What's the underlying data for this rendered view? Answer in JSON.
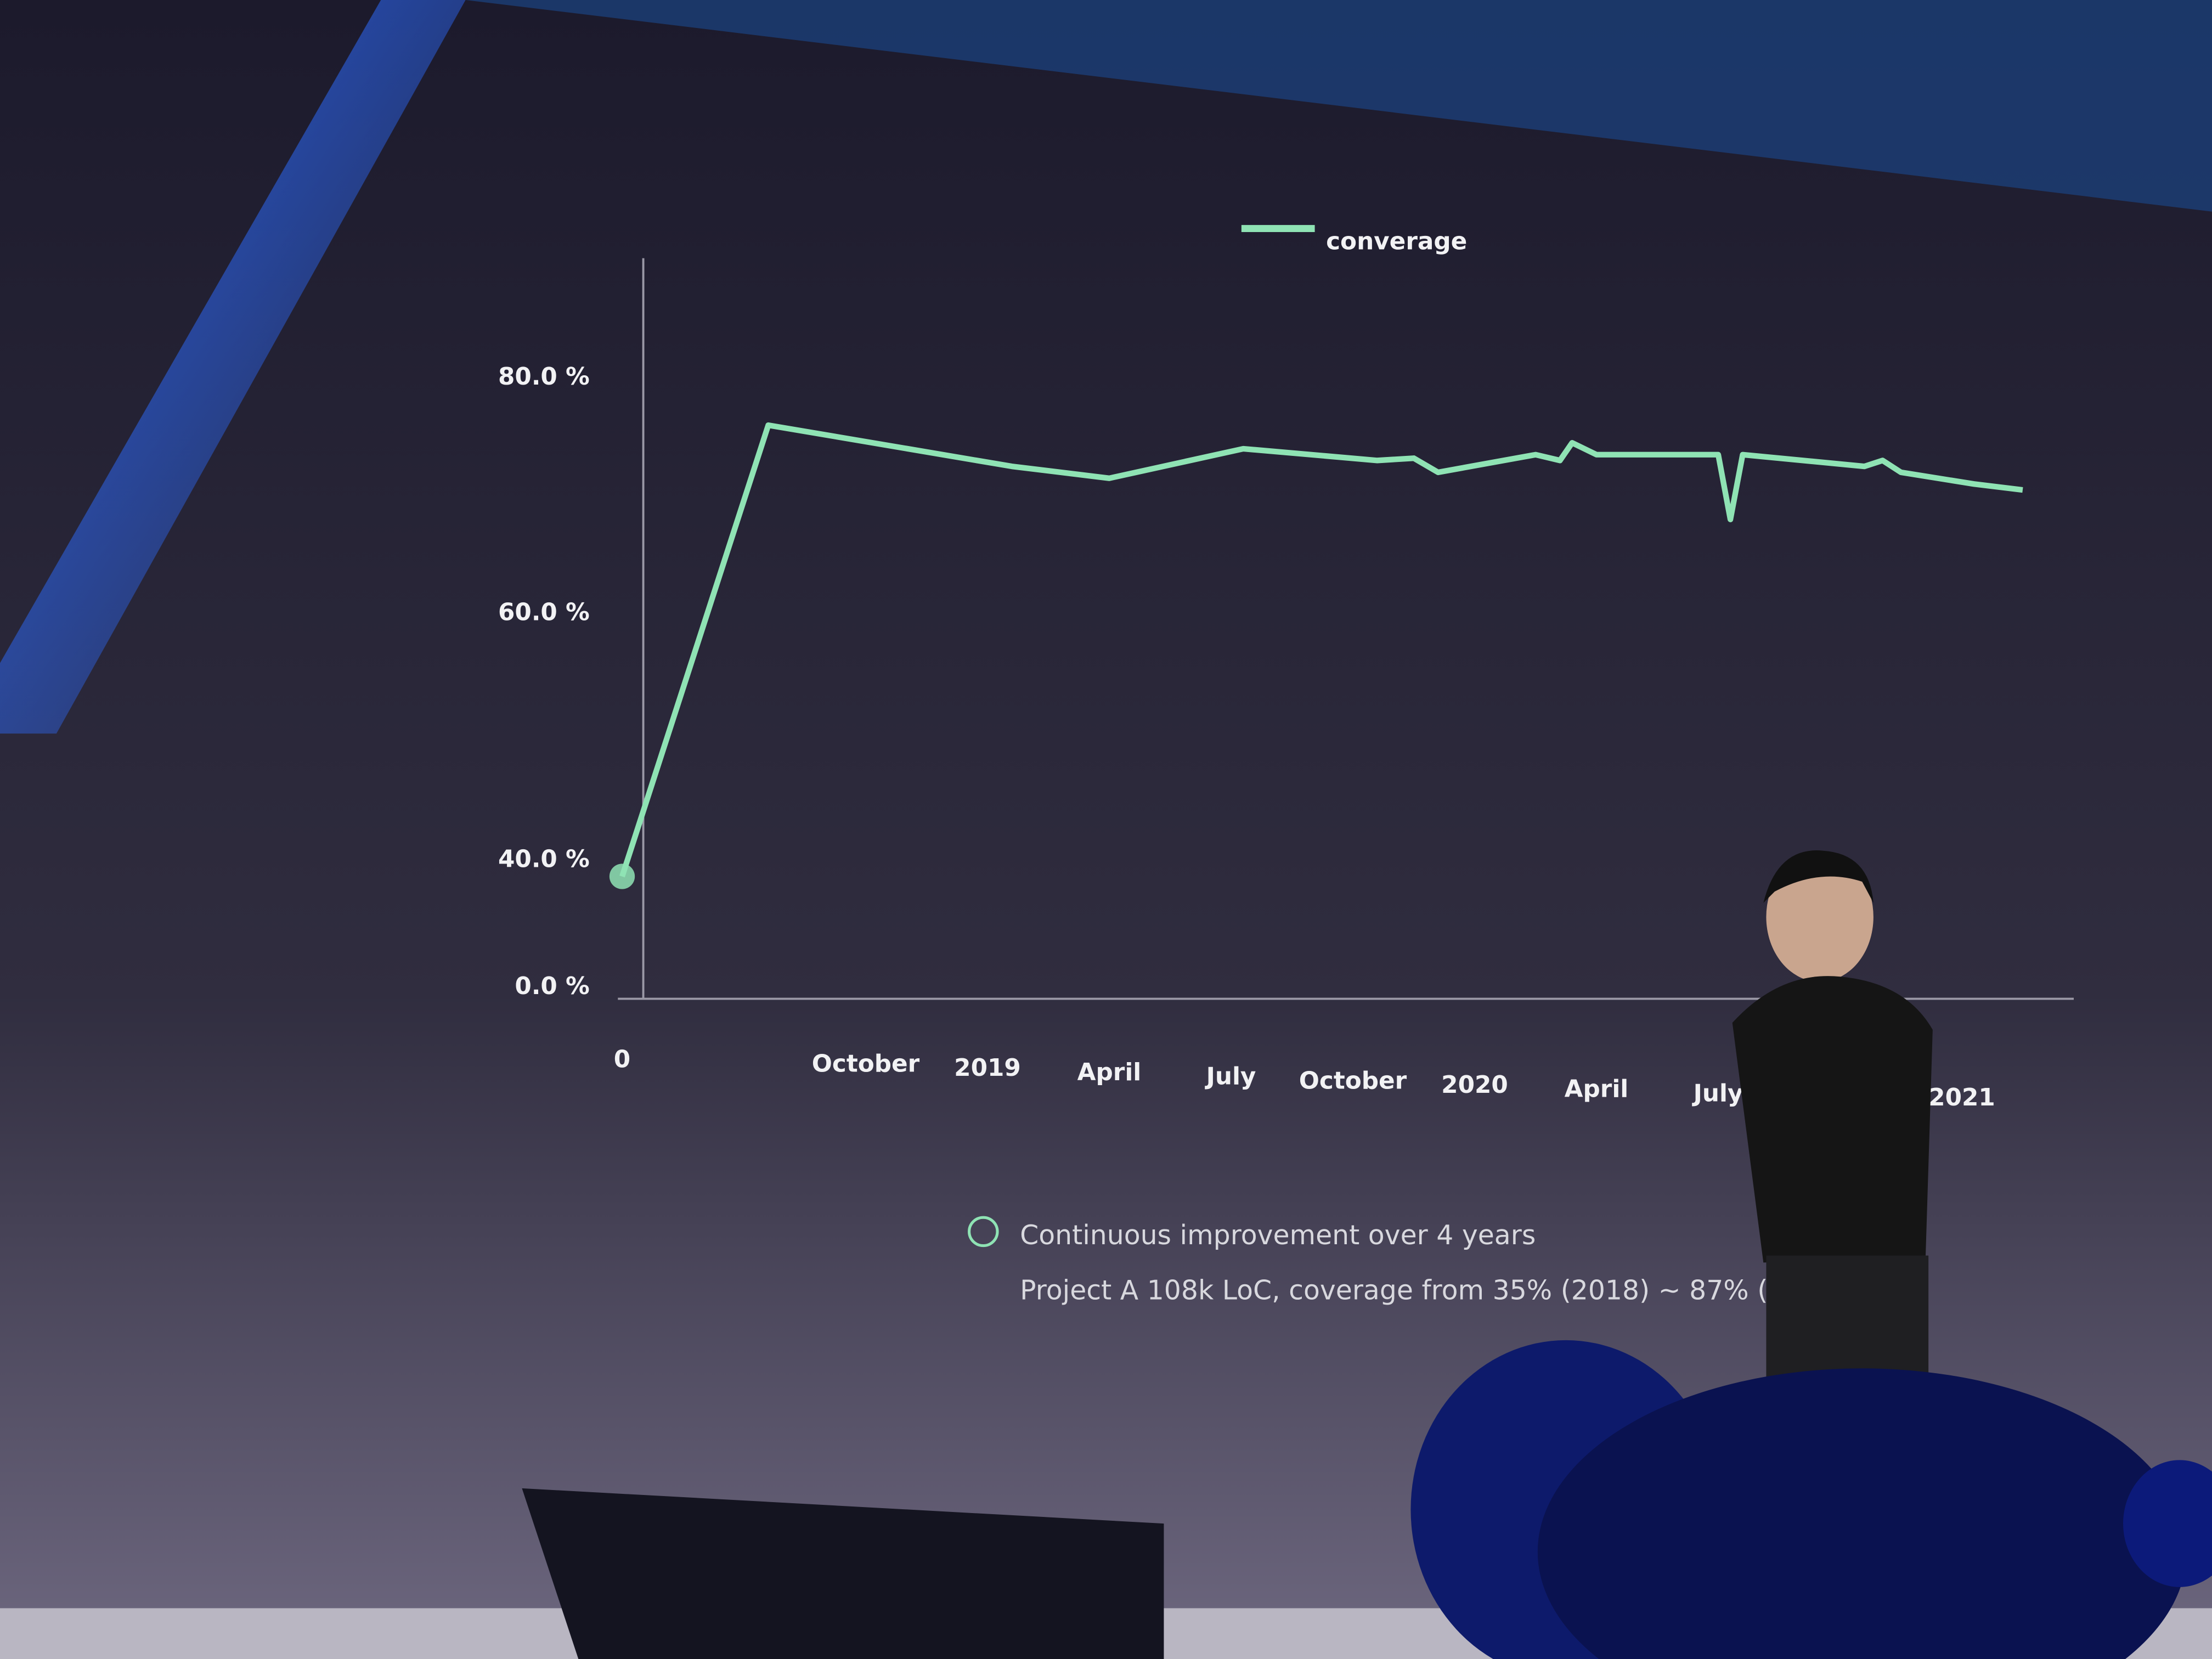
{
  "chart_data": {
    "type": "line",
    "legend_position": "top",
    "x": [
      0,
      1.2,
      3.2,
      4.0,
      5.1,
      6.2,
      6.5,
      6.7,
      7.5,
      7.7,
      7.8,
      8.0,
      9.0,
      9.1,
      9.2,
      10.2,
      10.35,
      10.5,
      11.1,
      11.5
    ],
    "series": [
      {
        "name": "converage",
        "color": "#8fe3b4",
        "values": [
          35,
          76,
          72.5,
          71.5,
          74,
          73,
          73.2,
          72,
          73.5,
          73,
          74.5,
          73.5,
          73.5,
          68,
          73.5,
          72.5,
          73,
          72,
          71,
          70.5
        ]
      }
    ],
    "xlim": [
      0,
      12
    ],
    "xticks": [
      {
        "value": 0,
        "label": "0"
      },
      {
        "value": 2,
        "label": "October"
      },
      {
        "value": 3,
        "label": "2019"
      },
      {
        "value": 4,
        "label": "April"
      },
      {
        "value": 5,
        "label": "July"
      },
      {
        "value": 6,
        "label": "October"
      },
      {
        "value": 7,
        "label": "2020"
      },
      {
        "value": 8,
        "label": "April"
      },
      {
        "value": 9,
        "label": "July"
      },
      {
        "value": 11,
        "label": "2021"
      }
    ],
    "ylim": [
      0,
      90
    ],
    "yticks": [
      {
        "value": 0,
        "label": "0.0 %"
      },
      {
        "value": 40,
        "label": "40.0 %"
      },
      {
        "value": 60,
        "label": "60.0 %"
      },
      {
        "value": 80,
        "label": "80.0 %"
      }
    ],
    "annotations": [
      "Continuous improvement over 4 years",
      "Project A 108k LoC, coverage from 35% (2018) ~ 87% (202"
    ]
  }
}
